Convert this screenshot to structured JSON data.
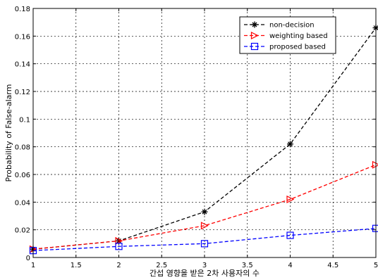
{
  "chart_data": {
    "type": "line",
    "xlabel": "간섭 영향을 받은 2차 사용자의 수",
    "ylabel": "Probability of False-alarm",
    "xlim": [
      1,
      5
    ],
    "ylim": [
      0,
      0.18
    ],
    "xticks": [
      1,
      1.5,
      2,
      2.5,
      3,
      3.5,
      4,
      4.5,
      5
    ],
    "xtick_labels": [
      "1",
      "1.5",
      "2",
      "2.5",
      "3",
      "3.5",
      "4",
      "4.5",
      "5"
    ],
    "yticks": [
      0,
      0.02,
      0.04,
      0.06,
      0.08,
      0.1,
      0.12,
      0.14,
      0.16,
      0.18
    ],
    "ytick_labels": [
      "0",
      "0.02",
      "0.04",
      "0.06",
      "0.08",
      "0.1",
      "0.12",
      "0.14",
      "0.16",
      "0.18"
    ],
    "grid": true,
    "legend_position": "top-right",
    "x": [
      1,
      2,
      3,
      4,
      5
    ],
    "series": [
      {
        "name": "non-decision",
        "values": [
          0.006,
          0.012,
          0.033,
          0.082,
          0.166
        ],
        "color": "#000000",
        "marker": "star"
      },
      {
        "name": "weighting based",
        "values": [
          0.006,
          0.012,
          0.023,
          0.042,
          0.067
        ],
        "color": "#ff0000",
        "marker": "triangle-right"
      },
      {
        "name": "proposed based",
        "values": [
          0.005,
          0.008,
          0.01,
          0.016,
          0.021
        ],
        "color": "#0000ff",
        "marker": "square"
      }
    ]
  }
}
